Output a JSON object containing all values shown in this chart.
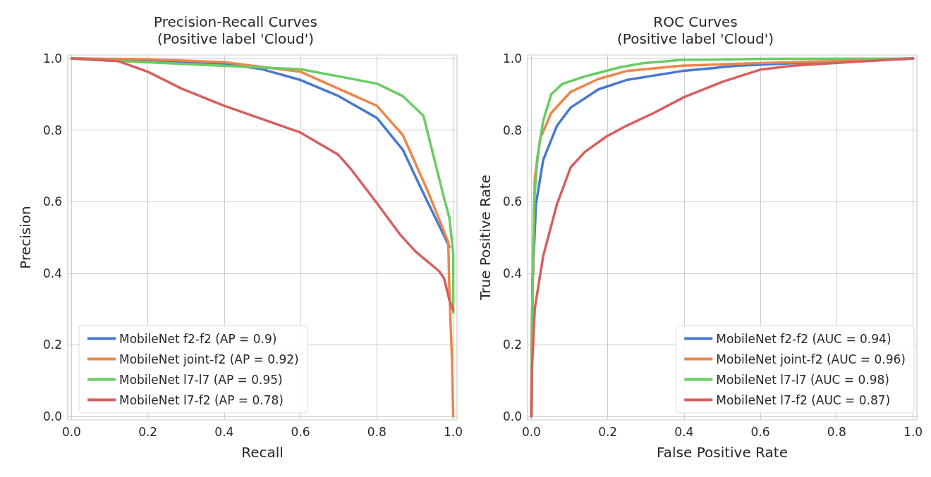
{
  "chart_data": [
    {
      "type": "line",
      "title": "Precision-Recall Curves\n(Positive label 'Cloud')",
      "xlabel": "Recall",
      "ylabel": "Precision",
      "xlim": [
        -0.01,
        1.01
      ],
      "ylim": [
        -0.01,
        1.01
      ],
      "xticks": [
        {
          "value": 0,
          "label": "0.0"
        },
        {
          "value": 0.2,
          "label": "0.2"
        },
        {
          "value": 0.4,
          "label": "0.4"
        },
        {
          "value": 0.6,
          "label": "0.6"
        },
        {
          "value": 0.8,
          "label": "0.8"
        },
        {
          "value": 1,
          "label": "1.0"
        }
      ],
      "yticks": [
        {
          "value": 0,
          "label": "0.0"
        },
        {
          "value": 0.2,
          "label": "0.2"
        },
        {
          "value": 0.4,
          "label": "0.4"
        },
        {
          "value": 0.6,
          "label": "0.6"
        },
        {
          "value": 0.8,
          "label": "0.8"
        },
        {
          "value": 1,
          "label": "1.0"
        }
      ],
      "grid": true,
      "legend": "bottom left",
      "marker": "none",
      "line_style": "solid",
      "series": [
        {
          "name": "MobileNet f2-f2 (AP = 0.9)",
          "color": "#4878d0",
          "x": [
            0,
            0.2,
            0.4,
            0.5,
            0.6,
            0.7,
            0.8,
            0.868,
            0.922,
            0.96,
            0.99
          ],
          "values": [
            1,
            0.995,
            0.986,
            0.97,
            0.94,
            0.895,
            0.834,
            0.745,
            0.623,
            0.54,
            0.474
          ]
        },
        {
          "name": "MobileNet joint-f2 (AP = 0.92)",
          "color": "#ee854a",
          "x": [
            0,
            0.2,
            0.4,
            0.6,
            0.8,
            0.868,
            0.936,
            0.987,
            0.99,
            0.997,
            1
          ],
          "values": [
            1,
            0.998,
            0.99,
            0.963,
            0.868,
            0.786,
            0.623,
            0.487,
            0.35,
            0.15,
            0
          ]
        },
        {
          "name": "MobileNet l7-l7 (AP = 0.95)",
          "color": "#6acc64",
          "x": [
            0,
            0.19,
            0.6,
            0.8,
            0.868,
            0.922,
            0.949,
            0.976,
            0.99,
            1,
            1
          ],
          "values": [
            1,
            0.99,
            0.97,
            0.93,
            0.895,
            0.84,
            0.725,
            0.61,
            0.555,
            0.455,
            0.29
          ]
        },
        {
          "name": "MobileNet l7-f2 (AP = 0.78)",
          "color": "#d65f5f",
          "x": [
            0,
            0.122,
            0.2,
            0.29,
            0.4,
            0.6,
            0.698,
            0.732,
            0.8,
            0.861,
            0.902,
            0.963,
            0.976,
            0.99,
            1
          ],
          "values": [
            1,
            0.993,
            0.963,
            0.915,
            0.868,
            0.793,
            0.732,
            0.691,
            0.596,
            0.508,
            0.46,
            0.406,
            0.386,
            0.325,
            0.297
          ]
        }
      ]
    },
    {
      "type": "line",
      "title": "ROC Curves\n(Positive label 'Cloud')",
      "xlabel": "False Positive Rate",
      "ylabel": "True Positive Rate",
      "xlim": [
        -0.01,
        1.01
      ],
      "ylim": [
        -0.01,
        1.01
      ],
      "xticks": [
        {
          "value": 0,
          "label": "0.0"
        },
        {
          "value": 0.2,
          "label": "0.2"
        },
        {
          "value": 0.4,
          "label": "0.4"
        },
        {
          "value": 0.6,
          "label": "0.6"
        },
        {
          "value": 0.8,
          "label": "0.8"
        },
        {
          "value": 1,
          "label": "1.0"
        }
      ],
      "yticks": [
        {
          "value": 0,
          "label": "0.0"
        },
        {
          "value": 0.2,
          "label": "0.2"
        },
        {
          "value": 0.4,
          "label": "0.4"
        },
        {
          "value": 0.6,
          "label": "0.6"
        },
        {
          "value": 0.8,
          "label": "0.8"
        },
        {
          "value": 1,
          "label": "1.0"
        }
      ],
      "grid": true,
      "legend": "bottom right",
      "marker": "none",
      "line_style": "solid",
      "series": [
        {
          "name": "MobileNet f2-f2 (AUC = 0.94)",
          "color": "#4878d0",
          "x": [
            0,
            0.003,
            0.012,
            0.031,
            0.067,
            0.103,
            0.176,
            0.249,
            0.394,
            0.54,
            0.685,
            1
          ],
          "values": [
            0,
            0.375,
            0.593,
            0.717,
            0.812,
            0.863,
            0.914,
            0.94,
            0.965,
            0.98,
            0.987,
            1
          ]
        },
        {
          "name": "MobileNet joint-f2 (AUC = 0.96)",
          "color": "#ee854a",
          "x": [
            0,
            0.001,
            0.009,
            0.023,
            0.052,
            0.103,
            0.176,
            0.249,
            0.394,
            0.612,
            0.83,
            1
          ],
          "values": [
            0,
            0.23,
            0.666,
            0.776,
            0.848,
            0.907,
            0.943,
            0.965,
            0.98,
            0.988,
            0.994,
            1
          ]
        },
        {
          "name": "MobileNet l7-l7 (AUC = 0.98)",
          "color": "#6acc64",
          "x": [
            0,
            0.002,
            0.007,
            0.016,
            0.031,
            0.052,
            0.081,
            0.14,
            0.234,
            0.292,
            0.394,
            0.612,
            1
          ],
          "values": [
            0,
            0.3,
            0.6,
            0.725,
            0.827,
            0.9,
            0.929,
            0.95,
            0.976,
            0.987,
            0.996,
            0.999,
            1
          ]
        },
        {
          "name": "MobileNet l7-f2 (AUC = 0.87)",
          "color": "#d65f5f",
          "x": [
            0,
            0.001,
            0.009,
            0.031,
            0.067,
            0.103,
            0.14,
            0.198,
            0.249,
            0.321,
            0.4,
            0.503,
            0.6,
            0.685,
            0.83,
            1
          ],
          "values": [
            0,
            0.12,
            0.302,
            0.448,
            0.593,
            0.696,
            0.739,
            0.783,
            0.812,
            0.848,
            0.892,
            0.936,
            0.969,
            0.98,
            0.99,
            1
          ]
        }
      ]
    }
  ]
}
